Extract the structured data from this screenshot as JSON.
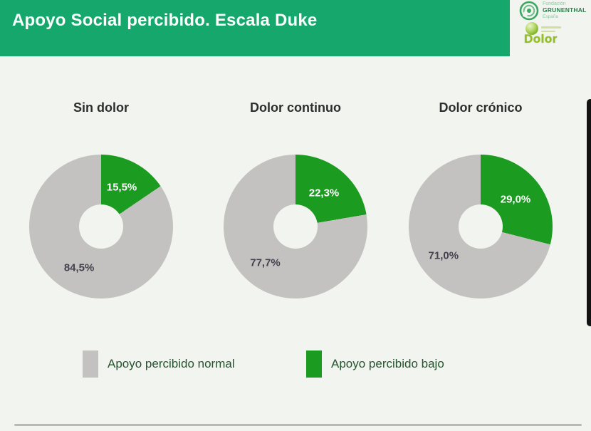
{
  "header": {
    "title": "Apoyo Social percibido. Escala Duke"
  },
  "logos": {
    "grunenthal": {
      "line1": "Fundación",
      "line2": "GRUNENTHAL",
      "line3": "España"
    },
    "dolor": {
      "name": "Dolor"
    }
  },
  "colors": {
    "header_green": "#15a76c",
    "low_support": "#1b9b1f",
    "normal_support": "#c3c2c1",
    "background": "#f2f4ef",
    "legend_text": "#24552f"
  },
  "chart_data": {
    "type": "pie",
    "subtype": "donut",
    "unit": "%",
    "start_angle": "top, clockwise",
    "legend_position": "bottom",
    "charts": [
      {
        "title": "Sin dolor",
        "low": 15.5,
        "normal": 84.5,
        "low_label": "15,5%",
        "normal_label": "84,5%"
      },
      {
        "title": "Dolor continuo",
        "low": 22.3,
        "normal": 77.7,
        "low_label": "22,3%",
        "normal_label": "77,7%"
      },
      {
        "title": "Dolor crónico",
        "low": 29.0,
        "normal": 71.0,
        "low_label": "29,0%",
        "normal_label": "71,0%"
      }
    ],
    "legend": [
      {
        "label": "Apoyo percibido normal",
        "color_key": "normal_support"
      },
      {
        "label": "Apoyo percibido bajo",
        "color_key": "low_support"
      }
    ]
  }
}
